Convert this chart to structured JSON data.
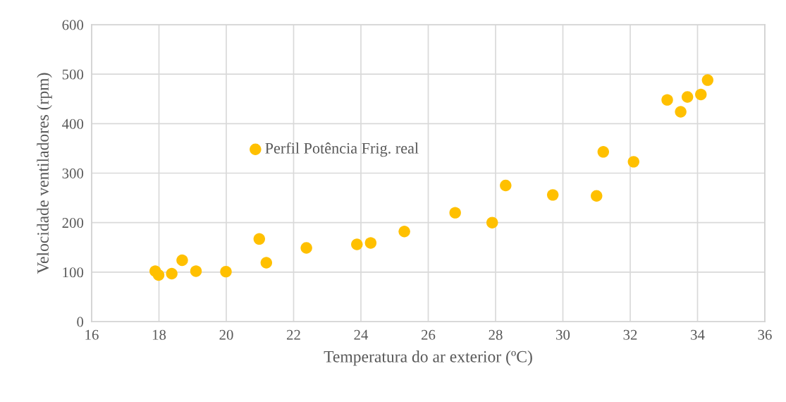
{
  "chart_data": {
    "type": "scatter",
    "xlabel": "Temperatura do ar exterior (ºC)",
    "ylabel": "Velocidade ventiladores (rpm)",
    "xlim": [
      16,
      36
    ],
    "xticks": [
      16,
      18,
      20,
      22,
      24,
      26,
      28,
      30,
      32,
      34,
      36
    ],
    "ylim": [
      0,
      600
    ],
    "yticks": [
      0,
      100,
      200,
      300,
      400,
      500,
      600
    ],
    "grid": true,
    "legend": "top left",
    "marker": "circle",
    "series": [
      {
        "name": "Perfil Potência Frig. real",
        "color": "#ffc000",
        "x": [
          17.89,
          17.99,
          18.38,
          18.69,
          19.1,
          19.99,
          20.98,
          21.19,
          22.38,
          23.88,
          24.29,
          25.29,
          26.8,
          27.9,
          28.3,
          29.7,
          31.0,
          31.2,
          32.1,
          33.1,
          33.5,
          33.7,
          34.1,
          34.3
        ],
        "values": [
          102,
          94,
          97,
          124,
          102,
          101,
          167,
          119,
          149,
          156,
          159,
          182,
          220,
          200,
          275,
          256,
          254,
          343,
          323,
          448,
          424,
          454,
          459,
          488
        ]
      }
    ]
  }
}
